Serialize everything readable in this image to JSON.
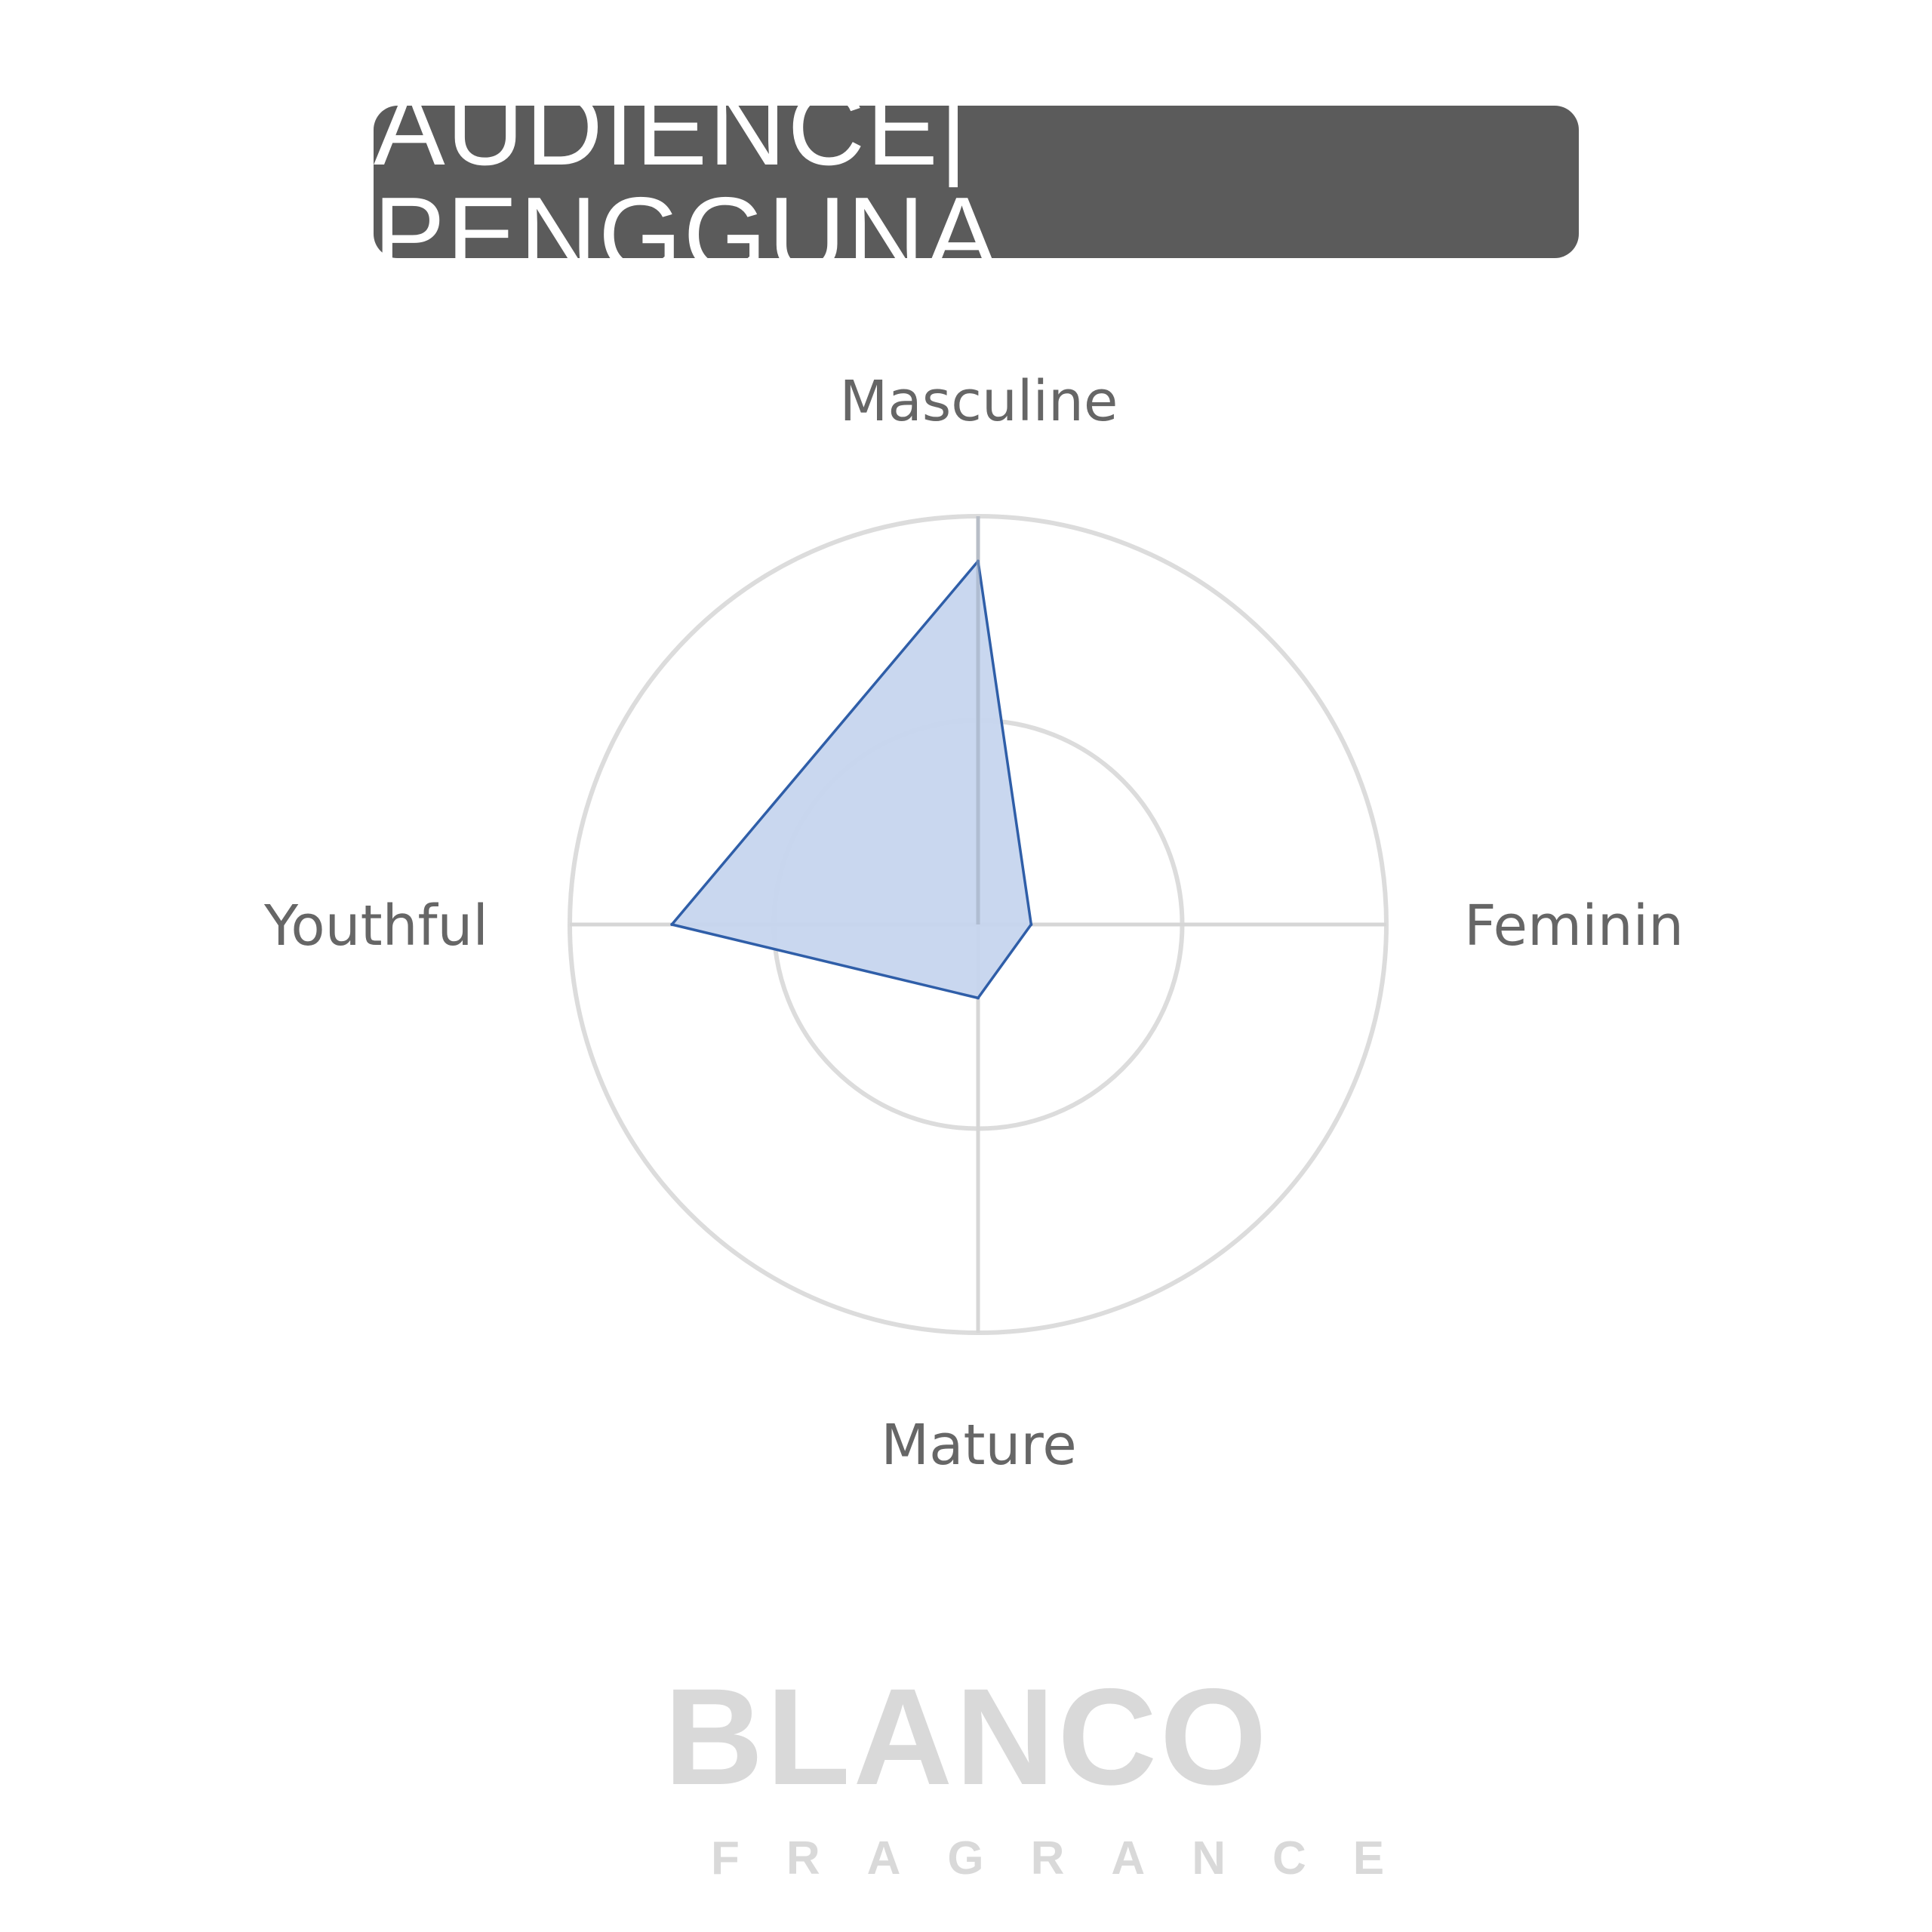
{
  "header": {
    "title": "AUDIENCE| PENGGUNA",
    "background_color": "#5b5b5b"
  },
  "chart_data": {
    "type": "radar",
    "axes": [
      "Masculine",
      "Feminine",
      "Mature",
      "Youthful"
    ],
    "values": [
      0.89,
      0.13,
      0.18,
      0.75
    ],
    "rlim": [
      0,
      1
    ],
    "rings": [
      0.5,
      1.0
    ],
    "grid": true,
    "fill_color": "#c6d5ee",
    "line_color": "#2f5ea8"
  },
  "logo": {
    "brand": "BLANCO",
    "sub": "FRAGRANCE"
  }
}
